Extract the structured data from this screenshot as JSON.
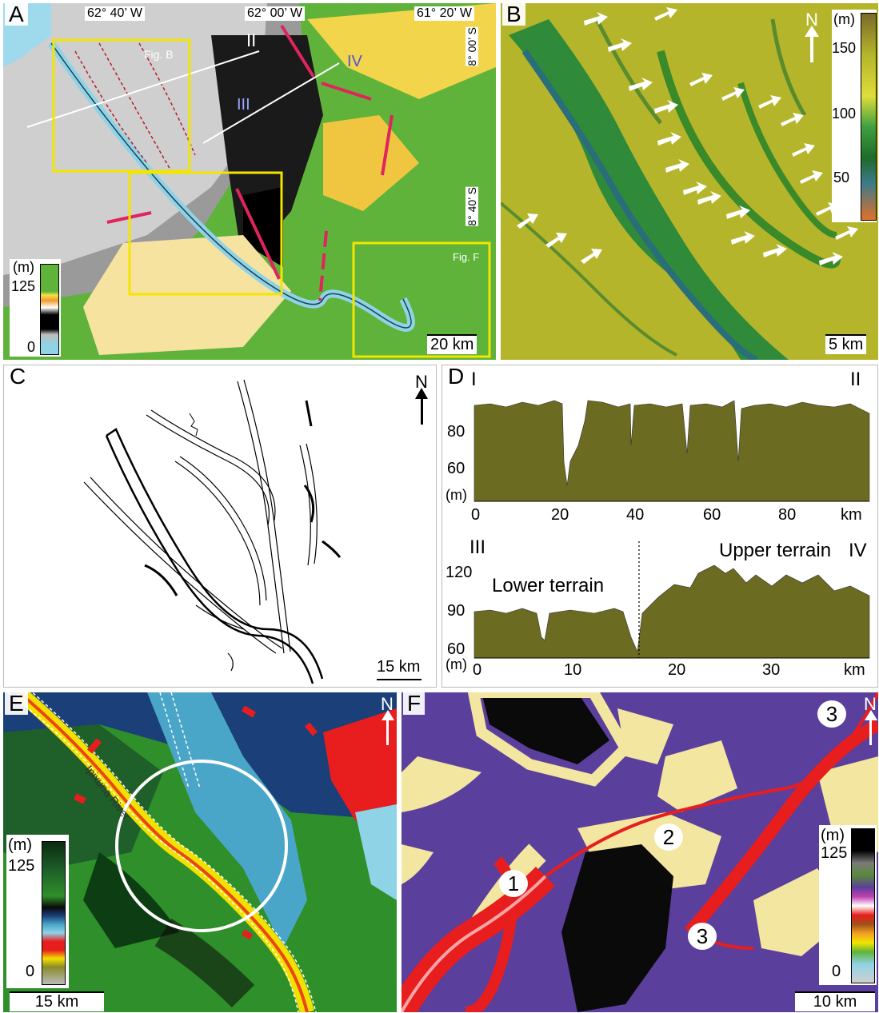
{
  "panel_a": {
    "label": "A",
    "lon_labels": [
      "62° 40’ W",
      "62° 00’ W",
      "61° 20’ W"
    ],
    "lat_labels": [
      "8° 00’ S",
      "8° 40’ S"
    ],
    "profile_marks": [
      "II",
      "III",
      "IV"
    ],
    "fig_b_label": "Fig. B",
    "fig_f_label": "Fig. F",
    "legend": {
      "unit": "(m)",
      "max": "125",
      "min": "0"
    },
    "scale": "20 km"
  },
  "panel_b": {
    "label": "B",
    "north": "N",
    "legend": {
      "unit": "(m)",
      "ticks": [
        "150",
        "100",
        "50"
      ]
    },
    "scale": "5 km"
  },
  "panel_c": {
    "label": "C",
    "north": "N",
    "scale": "15 km"
  },
  "panel_d": {
    "label": "D",
    "profile1": {
      "start": "I",
      "end": "II",
      "unit": "(m)",
      "xunit": "km",
      "yticks": [
        "80",
        "60"
      ],
      "xticks": [
        "0",
        "20",
        "40",
        "60",
        "80"
      ]
    },
    "profile2": {
      "start": "III",
      "end": "IV",
      "unit": "(m)",
      "xunit": "km",
      "lower": "Lower terrain",
      "upper": "Upper terrain",
      "yticks": [
        "120",
        "90",
        "60"
      ],
      "xticks": [
        "0",
        "10",
        "20",
        "30"
      ]
    }
  },
  "panel_e": {
    "label": "E",
    "north": "N",
    "river": "Ipixuna River",
    "legend": {
      "unit": "(m)",
      "max": "125",
      "min": "0"
    },
    "scale": "15 km"
  },
  "panel_f": {
    "label": "F",
    "north": "N",
    "markers": [
      "1",
      "2",
      "3",
      "3"
    ],
    "legend": {
      "unit": "(m)",
      "max": "125",
      "min": "0"
    },
    "scale": "10 km"
  },
  "colors": {
    "profile_fill": "#6b6b22",
    "highlight_box": "#f2e600",
    "fault_line": "#e0245e",
    "river_blue": "#8fd3e6",
    "f_purple": "#5b3f9c",
    "e_green": "#2f8f2a"
  }
}
